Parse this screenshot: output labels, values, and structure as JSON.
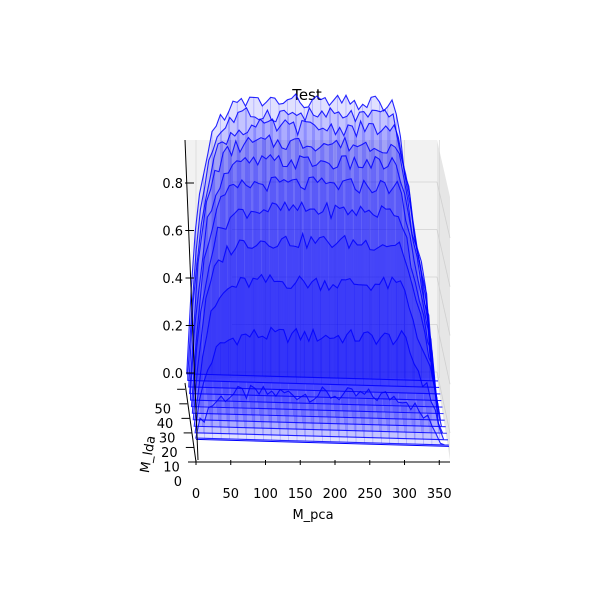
{
  "chart_data": {
    "type": "surface-3d",
    "title": "Test",
    "xlabel": "M_pca",
    "ylabel": "M_lda",
    "zlabel": "",
    "x_ticks": [
      "0",
      "50",
      "100",
      "150",
      "200",
      "250",
      "300",
      "350"
    ],
    "y_ticks": [
      "0",
      "10",
      "20",
      "30",
      "40",
      "50"
    ],
    "z_ticks": [
      "0.0",
      "0.2",
      "0.4",
      "0.6",
      "0.8"
    ],
    "xlim": [
      0,
      364
    ],
    "ylim": [
      0,
      55
    ],
    "zlim": [
      -0.05,
      0.95
    ],
    "surface_color": "#0000ff",
    "grid": true,
    "series_description_values": {
      "m_lda_rows": [
        1,
        5,
        10,
        15,
        20,
        25,
        30,
        35,
        40,
        45,
        50
      ],
      "plateau_accuracy_by_row": [
        0.15,
        0.32,
        0.47,
        0.58,
        0.66,
        0.72,
        0.77,
        0.81,
        0.84,
        0.86,
        0.88
      ]
    }
  }
}
